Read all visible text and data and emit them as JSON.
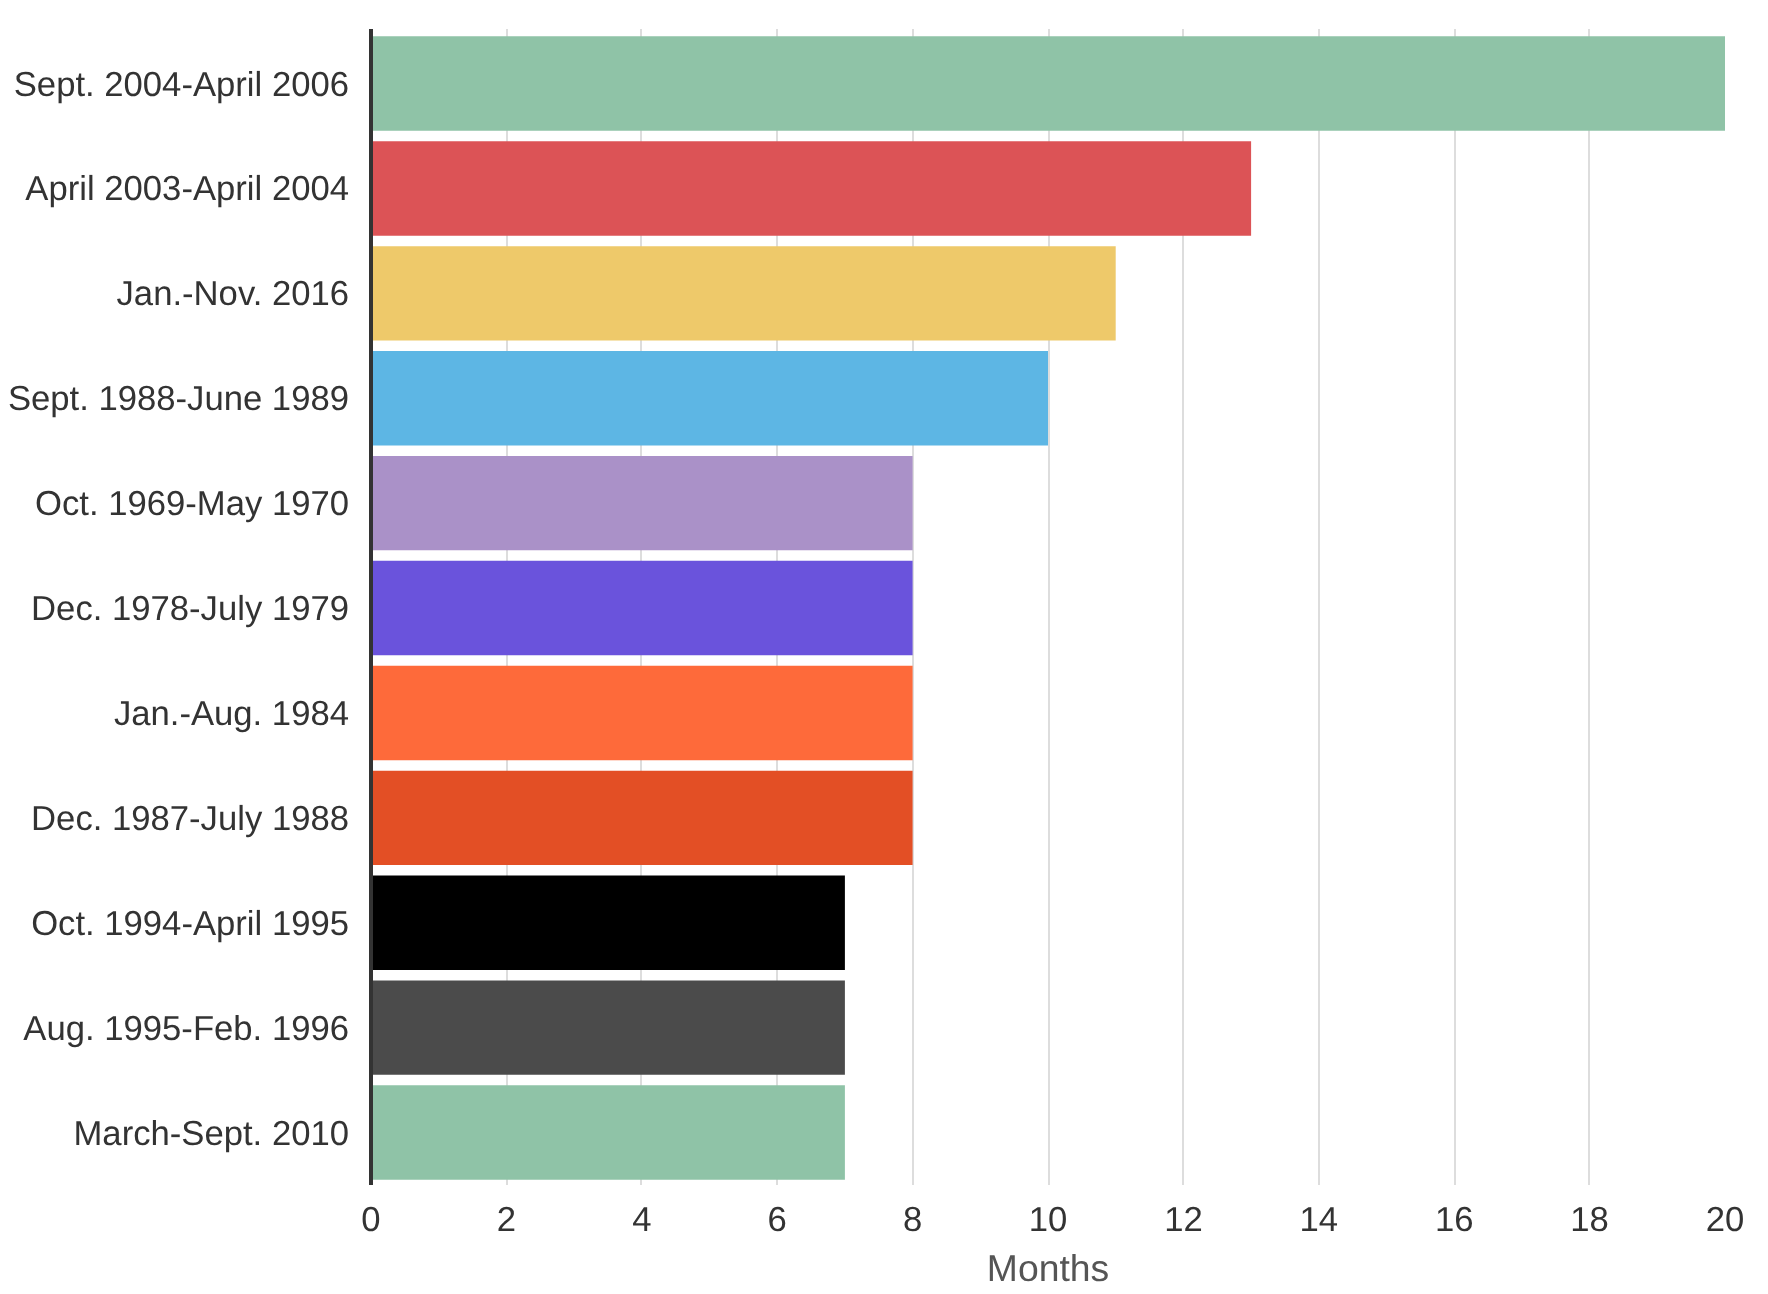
{
  "chart_data": {
    "type": "bar",
    "orientation": "horizontal",
    "xlabel": "Months",
    "categories": [
      "Sept. 2004-April 2006",
      "April 2003-April 2004",
      "Jan.-Nov. 2016",
      "Sept. 1988-June 1989",
      "Oct. 1969-May 1970",
      "Dec. 1978-July 1979",
      "Jan.-Aug. 1984",
      "Dec. 1987-July 1988",
      "Oct. 1994-April 1995",
      "Aug. 1995-Feb. 1996",
      "March-Sept. 2010"
    ],
    "values": [
      20,
      13,
      11,
      10,
      8,
      8,
      8,
      8,
      7,
      7,
      7
    ],
    "colors": [
      "#8fc3a7",
      "#dc5356",
      "#eec96a",
      "#5db6e4",
      "#aa91c8",
      "#6a53dc",
      "#fe6a3a",
      "#e34f25",
      "#000000",
      "#4b4b4b",
      "#8fc3a7"
    ],
    "xlim": [
      0,
      20
    ],
    "xticks": [
      0,
      2,
      4,
      6,
      8,
      10,
      12,
      14,
      16,
      18,
      20
    ],
    "grid": "x"
  }
}
